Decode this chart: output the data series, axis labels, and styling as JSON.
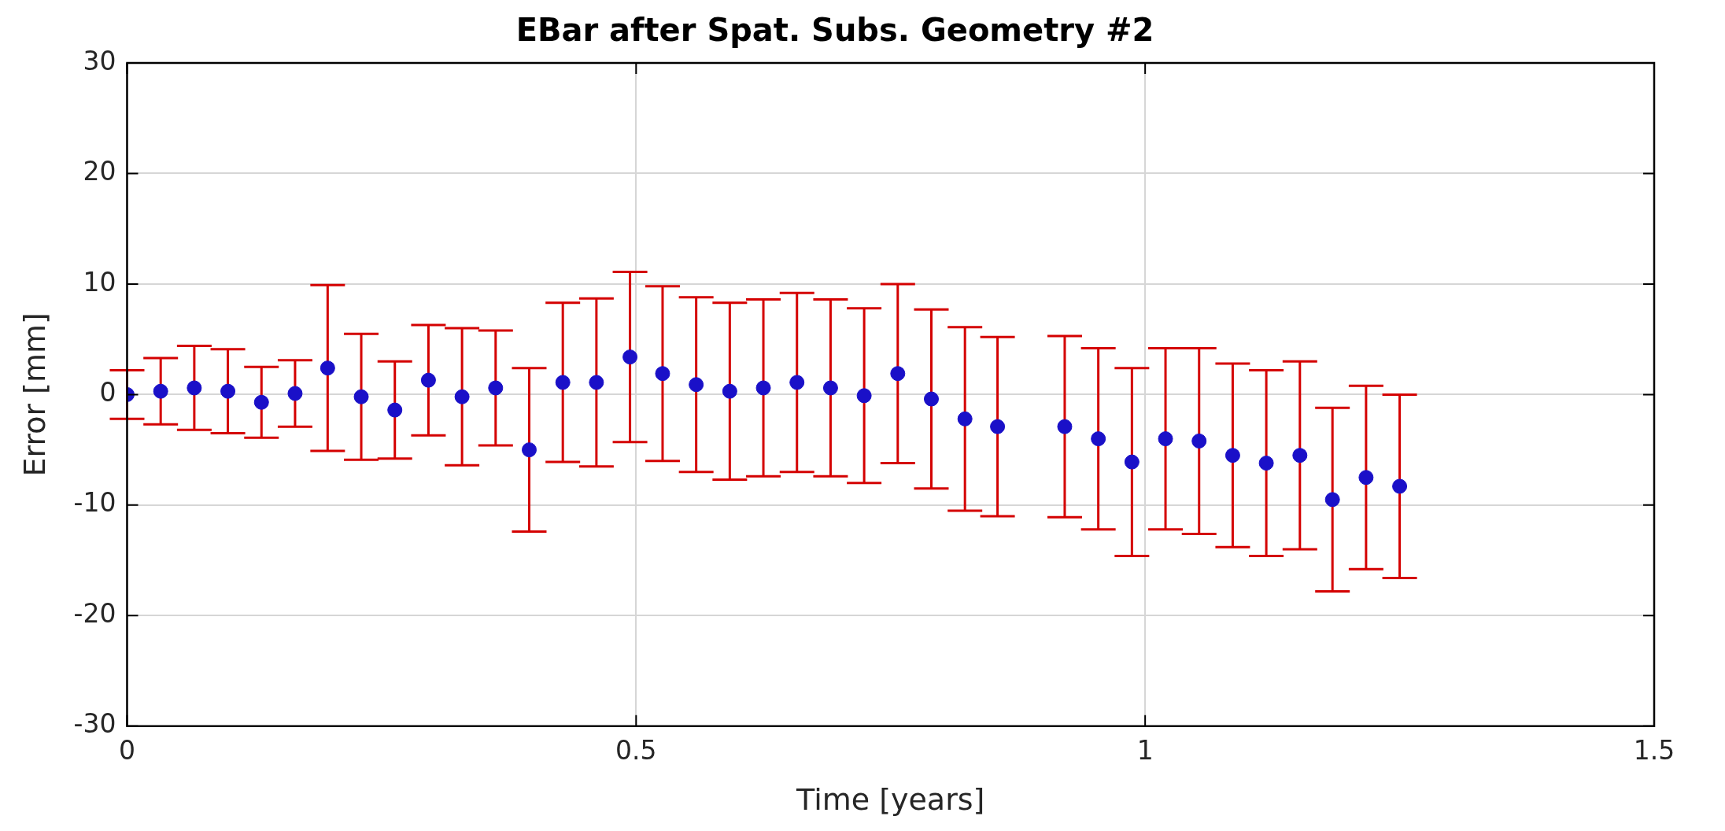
{
  "chart_data": {
    "type": "scatter",
    "title": "EBar after Spat. Subs. Geometry #2",
    "xlabel": "Time [years]",
    "ylabel": "Error [mm]",
    "x": [
      0,
      0.033,
      0.066,
      0.099,
      0.132,
      0.165,
      0.197,
      0.23,
      0.263,
      0.296,
      0.329,
      0.362,
      0.395,
      0.428,
      0.461,
      0.494,
      0.526,
      0.559,
      0.592,
      0.625,
      0.658,
      0.691,
      0.724,
      0.757,
      0.79,
      0.823,
      0.855,
      0.921,
      0.954,
      0.987,
      1.02,
      1.053,
      1.086,
      1.119,
      1.152,
      1.184,
      1.217,
      1.25
    ],
    "series": [
      {
        "color": "#1a10c8",
        "values": [
          0,
          0.3,
          0.6,
          0.3,
          -0.7,
          0.1,
          2.4,
          -0.2,
          -1.4,
          1.3,
          -0.2,
          0.6,
          -5.0,
          1.1,
          1.1,
          3.4,
          1.9,
          0.9,
          0.3,
          0.6,
          1.1,
          0.6,
          -0.1,
          1.9,
          -0.4,
          -2.2,
          -2.9,
          -2.9,
          -4.0,
          -6.1,
          -4.0,
          -4.2,
          -5.5,
          -6.2,
          -5.5,
          -9.5,
          -7.5,
          -8.3
        ],
        "errors": [
          2.2,
          3.0,
          3.8,
          3.8,
          3.2,
          3.0,
          7.5,
          5.7,
          4.4,
          5.0,
          6.2,
          5.2,
          7.4,
          7.2,
          7.6,
          7.7,
          7.9,
          7.9,
          8.0,
          8.0,
          8.1,
          8.0,
          7.9,
          8.1,
          8.1,
          8.3,
          8.1,
          8.2,
          8.2,
          8.5,
          8.2,
          8.4,
          8.3,
          8.4,
          8.5,
          8.3,
          8.3,
          8.3
        ]
      }
    ],
    "xlim": [
      0,
      1.5
    ],
    "xticks": [
      0,
      0.5,
      1,
      1.5
    ],
    "ylim": [
      -30,
      30
    ],
    "yticks": [
      -30,
      -20,
      -10,
      0,
      10,
      20,
      30
    ],
    "grid": true,
    "marker": "circle",
    "legend": false
  }
}
